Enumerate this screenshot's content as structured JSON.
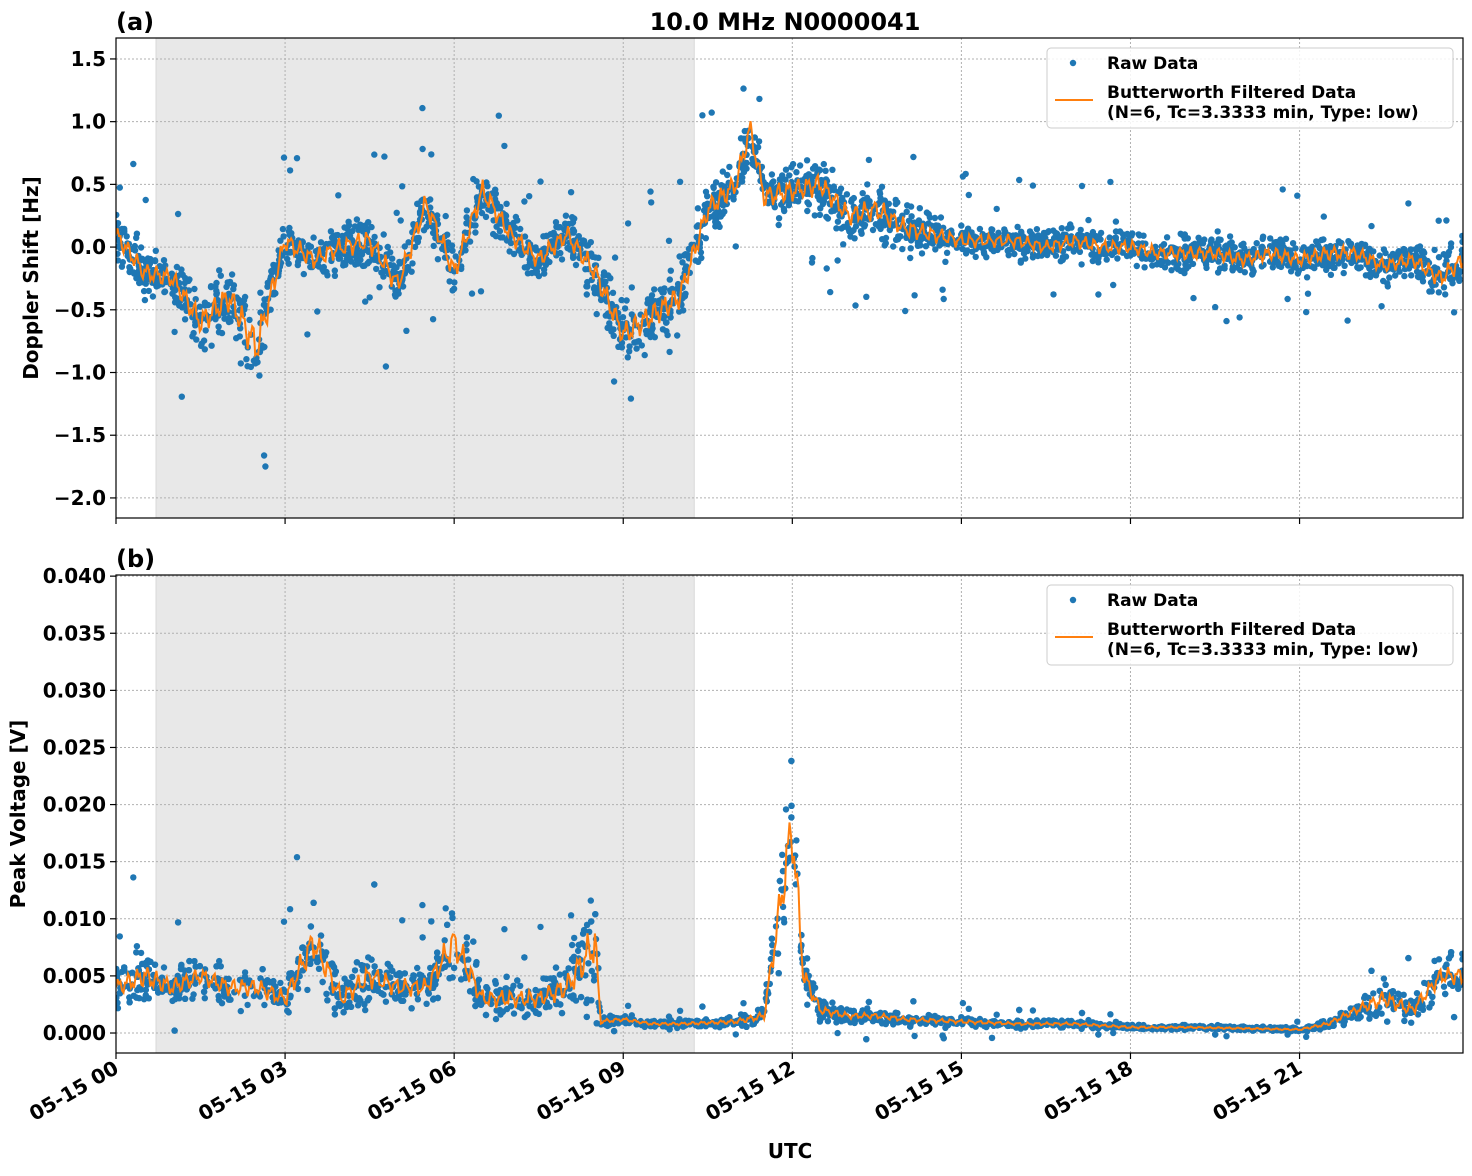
{
  "chart_data": [
    {
      "type": "scatter",
      "panel_label": "(a)",
      "title": "10.0 MHz N0000041",
      "xlabel": "",
      "ylabel": "Doppler Shift [Hz]",
      "ylim": [
        -2.16,
        1.667
      ],
      "yticks": [
        -2.0,
        -1.5,
        -1.0,
        -0.5,
        0.0,
        0.5,
        1.0,
        1.5
      ],
      "ytick_labels": [
        "−2.0",
        "−1.5",
        "−1.0",
        "−0.5",
        "0.0",
        "0.5",
        "1.0",
        "1.5"
      ],
      "xlim_hours": [
        0,
        23.9
      ],
      "grid": true,
      "legend_placement": "top-right",
      "shaded_region_hours": [
        0.71,
        10.26
      ],
      "colors": {
        "raw": "#1f77b4",
        "filtered": "#ff7f0e",
        "shade": "#e8e8e8"
      },
      "series": [
        {
          "name": "Raw Data",
          "style": "points"
        },
        {
          "name": "Butterworth Filtered Data",
          "name_line2": "(N=6, Tc=3.3333 min, Type: low)",
          "style": "line"
        }
      ],
      "filtered_hours": [
        0,
        0.5,
        1,
        1.5,
        2,
        2.5,
        3,
        3.5,
        4,
        4.5,
        5,
        5.5,
        6,
        6.5,
        7,
        7.5,
        8,
        8.5,
        9,
        9.5,
        10,
        10.5,
        11,
        11.25,
        11.5,
        12,
        12.5,
        13,
        13.5,
        14,
        14.5,
        15,
        15.5,
        16,
        16.5,
        17,
        17.5,
        18,
        18.5,
        19,
        19.5,
        20,
        20.5,
        21,
        21.5,
        22,
        22.5,
        23,
        23.5,
        23.9
      ],
      "filtered_values": [
        0.1,
        -0.2,
        -0.25,
        -0.6,
        -0.4,
        -0.8,
        0.05,
        -0.1,
        0.0,
        0.05,
        -0.3,
        0.35,
        -0.2,
        0.45,
        0.1,
        -0.1,
        0.1,
        -0.2,
        -0.7,
        -0.55,
        -0.4,
        0.3,
        0.5,
        0.95,
        0.4,
        0.45,
        0.5,
        0.25,
        0.3,
        0.15,
        0.1,
        0.05,
        0.05,
        0.05,
        0.0,
        0.05,
        0.0,
        0.0,
        -0.05,
        -0.05,
        -0.05,
        -0.1,
        -0.05,
        -0.1,
        -0.05,
        -0.05,
        -0.15,
        -0.1,
        -0.25,
        -0.1
      ],
      "raw_spread": [
        0.3,
        0.3,
        0.3,
        0.4,
        0.45,
        0.6,
        0.3,
        0.3,
        0.3,
        0.35,
        0.35,
        0.35,
        0.35,
        0.35,
        0.3,
        0.3,
        0.3,
        0.35,
        0.4,
        0.4,
        0.4,
        0.35,
        0.35,
        0.35,
        0.35,
        0.35,
        0.35,
        0.3,
        0.35,
        0.3,
        0.25,
        0.22,
        0.2,
        0.2,
        0.2,
        0.22,
        0.22,
        0.22,
        0.22,
        0.22,
        0.22,
        0.22,
        0.22,
        0.22,
        0.25,
        0.22,
        0.22,
        0.22,
        0.3,
        0.3
      ]
    },
    {
      "type": "scatter",
      "panel_label": "(b)",
      "xlabel": "UTC",
      "ylabel": "Peak Voltage [V]",
      "ylim": [
        -0.00175,
        0.0401
      ],
      "yticks": [
        0.0,
        0.005,
        0.01,
        0.015,
        0.02,
        0.025,
        0.03,
        0.035,
        0.04
      ],
      "ytick_labels": [
        "0.000",
        "0.005",
        "0.010",
        "0.015",
        "0.020",
        "0.025",
        "0.030",
        "0.035",
        "0.040"
      ],
      "xlim_hours": [
        0,
        23.9
      ],
      "xticks_hours": [
        0,
        3,
        6,
        9,
        12,
        15,
        18,
        21
      ],
      "xtick_labels": [
        "05-15 00",
        "05-15 03",
        "05-15 06",
        "05-15 09",
        "05-15 12",
        "05-15 15",
        "05-15 18",
        "05-15 21"
      ],
      "grid": true,
      "legend_placement": "top-right",
      "shaded_region_hours": [
        0.71,
        10.26
      ],
      "colors": {
        "raw": "#1f77b4",
        "filtered": "#ff7f0e",
        "shade": "#e8e8e8"
      },
      "series": [
        {
          "name": "Raw Data",
          "style": "points"
        },
        {
          "name": "Butterworth Filtered Data",
          "name_line2": "(N=6, Tc=3.3333 min, Type: low)",
          "style": "line"
        }
      ],
      "filtered_hours": [
        0,
        0.5,
        1,
        1.5,
        2,
        2.5,
        3,
        3.5,
        4,
        4.5,
        5,
        5.5,
        6,
        6.5,
        7,
        7.5,
        8,
        8.5,
        8.6,
        9,
        9.5,
        10,
        10.5,
        11,
        11.5,
        11.9,
        12,
        12.2,
        12.5,
        13,
        13.5,
        14,
        15,
        16,
        17,
        18,
        19,
        20,
        21,
        21.5,
        22,
        22.5,
        23,
        23.5,
        23.9
      ],
      "filtered_values": [
        0.004,
        0.005,
        0.004,
        0.005,
        0.004,
        0.004,
        0.003,
        0.008,
        0.003,
        0.005,
        0.004,
        0.004,
        0.008,
        0.003,
        0.003,
        0.003,
        0.004,
        0.008,
        0.001,
        0.0012,
        0.0008,
        0.0008,
        0.0009,
        0.001,
        0.0015,
        0.015,
        0.018,
        0.005,
        0.002,
        0.0015,
        0.0015,
        0.0012,
        0.001,
        0.0008,
        0.0008,
        0.0005,
        0.0005,
        0.0004,
        0.0003,
        0.0008,
        0.002,
        0.003,
        0.002,
        0.005,
        0.005
      ],
      "raw_spread": [
        0.003,
        0.004,
        0.003,
        0.003,
        0.003,
        0.003,
        0.003,
        0.006,
        0.003,
        0.004,
        0.003,
        0.003,
        0.006,
        0.003,
        0.003,
        0.003,
        0.004,
        0.008,
        0.0008,
        0.0006,
        0.0005,
        0.0005,
        0.0006,
        0.0008,
        0.0015,
        0.01,
        0.012,
        0.004,
        0.0015,
        0.001,
        0.001,
        0.0008,
        0.0007,
        0.0005,
        0.0005,
        0.0004,
        0.0003,
        0.0003,
        0.0003,
        0.0007,
        0.0015,
        0.003,
        0.002,
        0.003,
        0.003
      ]
    }
  ]
}
